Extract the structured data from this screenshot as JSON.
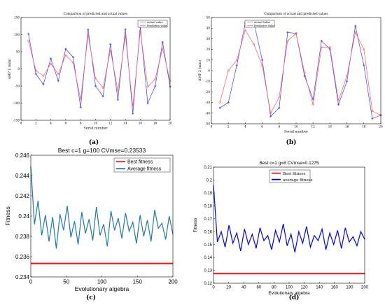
{
  "colors": {
    "blue": "#3b3bff",
    "red": "#ff5a5a",
    "matlab_red": "#e8211e",
    "matlab_blue": "#1f77b4",
    "axis": "#000000"
  },
  "panel_labels": [
    "(a)",
    "(b)",
    "(c)",
    "(d)"
  ],
  "chart_data": [
    {
      "type": "line",
      "title": "Comparison of predicted and actual values",
      "xlabel": "Serial number",
      "ylabel": "AMP 1 (mm)",
      "xlim": [
        0,
        20
      ],
      "ylim": [
        -150,
        150
      ],
      "xticks": [
        0,
        2,
        4,
        6,
        8,
        10,
        12,
        14,
        16,
        18,
        20
      ],
      "yticks": [
        -150,
        -100,
        -50,
        0,
        50,
        100,
        150
      ],
      "x": [
        1,
        2,
        3,
        4,
        5,
        6,
        7,
        8,
        9,
        10,
        11,
        12,
        13,
        14,
        15,
        16,
        17,
        18,
        19,
        20
      ],
      "series": [
        {
          "name": "Actual value",
          "marker": "*",
          "values": [
            102,
            -15,
            -45,
            30,
            -35,
            58,
            34,
            -112,
            115,
            -50,
            -80,
            72,
            -90,
            115,
            -130,
            123,
            -100,
            -50,
            78,
            -52
          ]
        },
        {
          "name": "Predictive value",
          "marker": "o",
          "values": [
            82,
            -5,
            -20,
            15,
            -15,
            40,
            18,
            -90,
            100,
            -28,
            -55,
            55,
            -65,
            98,
            -110,
            110,
            -52,
            -30,
            60,
            -35
          ]
        }
      ],
      "legend": "top-right",
      "grid": false
    },
    {
      "type": "line",
      "title": "Comparison of actual and predicted values",
      "xlabel": "Serial number",
      "ylabel": "AMP 2 (mm)",
      "xlim": [
        0,
        20
      ],
      "ylim": [
        -50,
        50
      ],
      "xticks": [
        0,
        2,
        4,
        6,
        8,
        10,
        12,
        14,
        16,
        18,
        20
      ],
      "yticks": [
        -50,
        -40,
        -30,
        -20,
        -10,
        0,
        10,
        20,
        30,
        40,
        50
      ],
      "x": [
        1,
        2,
        3,
        4,
        5,
        6,
        7,
        8,
        9,
        10,
        11,
        12,
        13,
        14,
        15,
        16,
        17,
        18,
        19,
        20
      ],
      "series": [
        {
          "name": "Actual Value",
          "marker": "*",
          "values": [
            -35,
            -30,
            5,
            45,
            46,
            10,
            -43,
            -35,
            36,
            35,
            -5,
            -27,
            28,
            20,
            -32,
            -10,
            42,
            5,
            -45,
            -42
          ]
        },
        {
          "name": "Predictive Value",
          "marker": "o",
          "values": [
            -30,
            0,
            10,
            38,
            25,
            5,
            -40,
            -25,
            28,
            35,
            -2,
            -32,
            22,
            22,
            -28,
            -5,
            36,
            20,
            -38,
            -42
          ]
        }
      ],
      "legend": "top-left",
      "grid": false
    },
    {
      "type": "line",
      "title": "Best c=1 g=100 CVmse=0.23533",
      "xlabel": "Evolutionary algebra",
      "ylabel": "Fitness",
      "xlim": [
        0,
        200
      ],
      "ylim": [
        0.234,
        0.246
      ],
      "xticks": [
        0,
        50,
        100,
        150,
        200
      ],
      "yticks": [
        0.234,
        0.236,
        0.238,
        0.24,
        0.242,
        0.244,
        0.246
      ],
      "series": [
        {
          "name": "Best fitness",
          "values": [
            0.23533
          ]
        },
        {
          "name": "Average fitness",
          "values": [
            0.2449,
            0.2392,
            0.2415,
            0.2381,
            0.2401,
            0.2375,
            0.2399,
            0.2368,
            0.2402,
            0.2386,
            0.241,
            0.2379,
            0.2395,
            0.2372,
            0.2404,
            0.2383,
            0.2397,
            0.2376,
            0.2409,
            0.2381,
            0.2392,
            0.237,
            0.2405,
            0.2386,
            0.2398,
            0.2378,
            0.2403,
            0.2385,
            0.2394,
            0.2373,
            0.2401,
            0.238,
            0.2396,
            0.2375,
            0.2406,
            0.2388,
            0.2393,
            0.2377,
            0.24,
            0.2382
          ]
        }
      ],
      "legend": "top-right",
      "grid": false
    },
    {
      "type": "line",
      "title": "Best c=1 g=8 CVmse=0.1275",
      "xlabel": "Evolutionary algebra",
      "ylabel": "Fitness",
      "xlim": [
        0,
        200
      ],
      "ylim": [
        0.12,
        0.21
      ],
      "xticks": [
        0,
        20,
        40,
        60,
        80,
        100,
        120,
        140,
        160,
        180,
        200
      ],
      "yticks": [
        0.12,
        0.13,
        0.14,
        0.15,
        0.16,
        0.17,
        0.18,
        0.19,
        0.2,
        0.21
      ],
      "series": [
        {
          "name": "Best fitness",
          "values": [
            0.1275
          ]
        },
        {
          "name": "average fitness",
          "values": [
            0.196,
            0.152,
            0.16,
            0.148,
            0.165,
            0.151,
            0.159,
            0.145,
            0.162,
            0.15,
            0.158,
            0.147,
            0.163,
            0.153,
            0.157,
            0.146,
            0.161,
            0.152,
            0.166,
            0.149,
            0.158,
            0.144,
            0.16,
            0.151,
            0.164,
            0.148,
            0.157,
            0.153,
            0.162,
            0.146,
            0.159,
            0.15,
            0.161,
            0.147,
            0.163,
            0.152,
            0.156,
            0.149,
            0.16,
            0.154
          ]
        }
      ],
      "legend": "top-right",
      "grid": false
    }
  ]
}
